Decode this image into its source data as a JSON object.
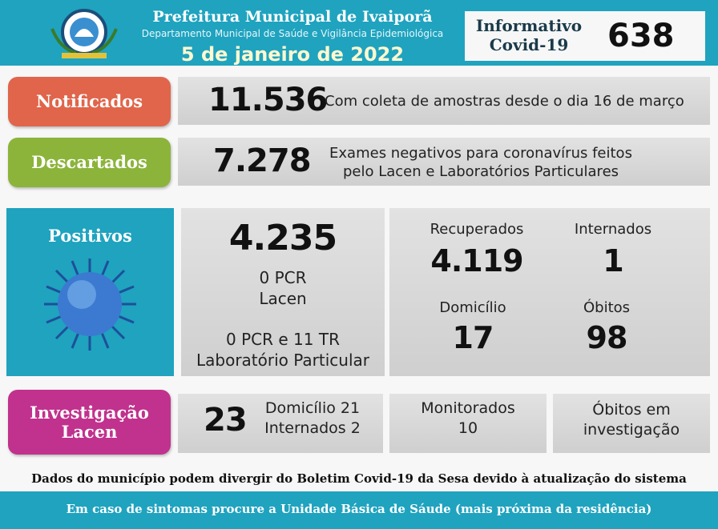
{
  "header": {
    "title": "Prefeitura Municipal de Ivaiporã",
    "subtitle": "Departamento Municipal de Saúde e Vigilância Epidemiológica",
    "date": "5 de janeiro de 2022",
    "badge_lines": [
      "Informativo",
      "Covid-19"
    ],
    "edition": "638"
  },
  "notificados": {
    "label": "Notificados",
    "value": "11.536",
    "note": "Com coleta de amostras desde o dia 16 de março"
  },
  "descartados": {
    "label": "Descartados",
    "value": "7.278",
    "note_lines": [
      "Exames negativos para coronavírus feitos",
      "pelo Lacen e Laboratórios Particulares"
    ]
  },
  "positivos": {
    "label": "Positivos",
    "value": "4.235",
    "lacen_lines": [
      "0 PCR",
      "Lacen"
    ],
    "particular_lines": [
      "0 PCR e 11 TR",
      "Laboratório Particular"
    ],
    "recuperados": {
      "label": "Recuperados",
      "value": "4.119"
    },
    "internados": {
      "label": "Internados",
      "value": "1"
    },
    "domicilio": {
      "label": "Domicílio",
      "value": "17"
    },
    "obitos": {
      "label": "Óbitos",
      "value": "98"
    }
  },
  "investigacao": {
    "label_lines": [
      "Investigação",
      "Lacen"
    ],
    "value": "23",
    "detail_lines": [
      "Domicílio 21",
      "Internados 2"
    ],
    "monitorados": {
      "label": "Monitorados",
      "value": "10"
    },
    "obitos_lines": [
      "Óbitos em",
      "investigação"
    ]
  },
  "footer": {
    "note": "Dados do município podem divergir do Boletim Covid-19 da Sesa devido à atualização do sistema",
    "advice": "Em caso de sintomas procure a Unidade Básica de Sáude (mais próxima da residência)"
  }
}
